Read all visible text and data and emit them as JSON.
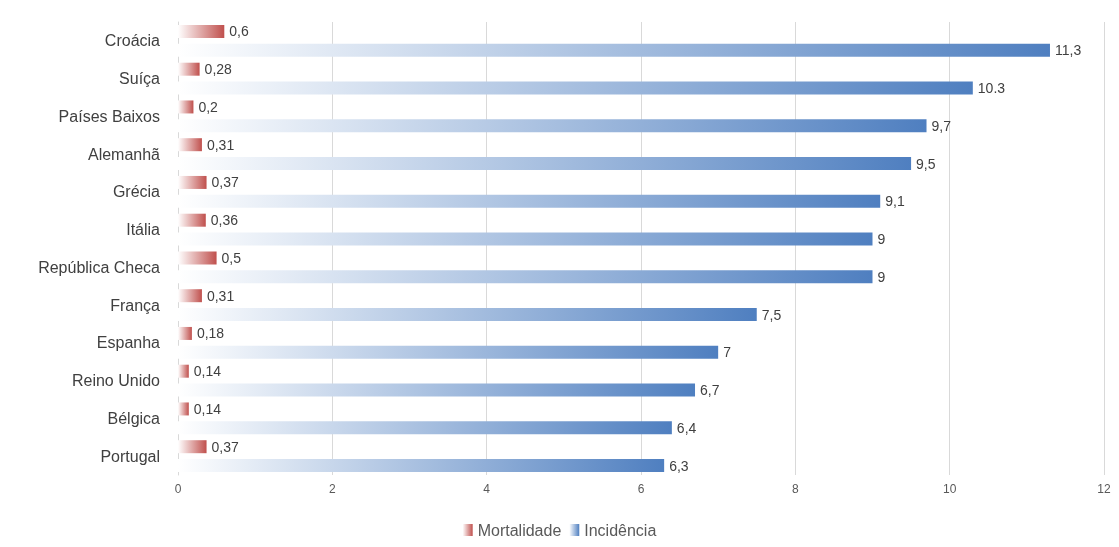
{
  "chart_data": {
    "type": "bar",
    "orientation": "horizontal",
    "categories": [
      "Croácia",
      "Suíça",
      "Países Baixos",
      "Alemanhã",
      "Grécia",
      "Itália",
      "República Checa",
      "França",
      "Espanha",
      "Reino Unido",
      "Bélgica",
      "Portugal"
    ],
    "series": [
      {
        "name": "Mortalidade",
        "color": "#c0504d",
        "values": [
          0.6,
          0.28,
          0.2,
          0.31,
          0.37,
          0.36,
          0.5,
          0.31,
          0.18,
          0.14,
          0.14,
          0.37
        ],
        "value_labels": [
          "0,6",
          "0,28",
          "0,2",
          "0,31",
          "0,37",
          "0,36",
          "0,5",
          "0,31",
          "0,18",
          "0,14",
          "0,14",
          "0,37"
        ]
      },
      {
        "name": "Incidência",
        "color": "#4f7fc0",
        "values": [
          11.3,
          10.3,
          9.7,
          9.5,
          9.1,
          9,
          9,
          7.5,
          7,
          6.7,
          6.4,
          6.3
        ],
        "value_labels": [
          "11,3",
          "10.3",
          "9,7",
          "9,5",
          "9,1",
          "9",
          "9",
          "7,5",
          "7",
          "6,7",
          "6,4",
          "6,3"
        ]
      }
    ],
    "xlim": [
      0,
      12
    ],
    "xticks": [
      0,
      2,
      4,
      6,
      8,
      10,
      12
    ],
    "grid": "x",
    "legend": "bottom"
  }
}
